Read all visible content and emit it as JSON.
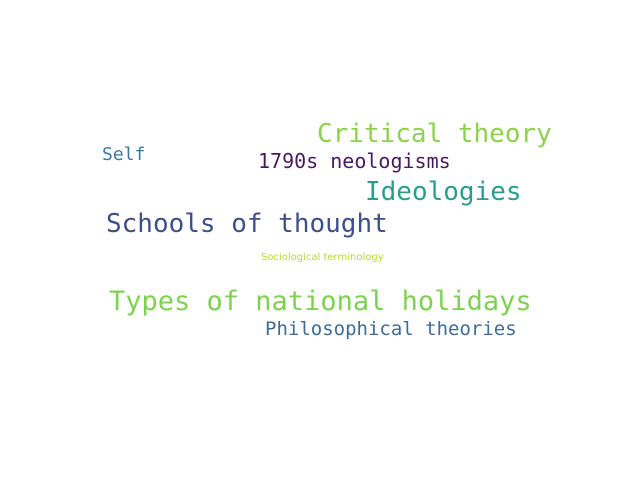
{
  "words": [
    {
      "text": "Critical theory",
      "color": "#8fd14f"
    },
    {
      "text": "Self",
      "color": "#3b7a9e"
    },
    {
      "text": "1790s neologisms",
      "color": "#4a1a5f"
    },
    {
      "text": "Ideologies",
      "color": "#2a9d8f"
    },
    {
      "text": "Schools of thought",
      "color": "#3e4f8a"
    },
    {
      "text": "Sociological terminology",
      "color": "#b5d93a"
    },
    {
      "text": "Types of national holidays",
      "color": "#7fd152"
    },
    {
      "text": "Philosophical theories",
      "color": "#3f6b95"
    }
  ]
}
